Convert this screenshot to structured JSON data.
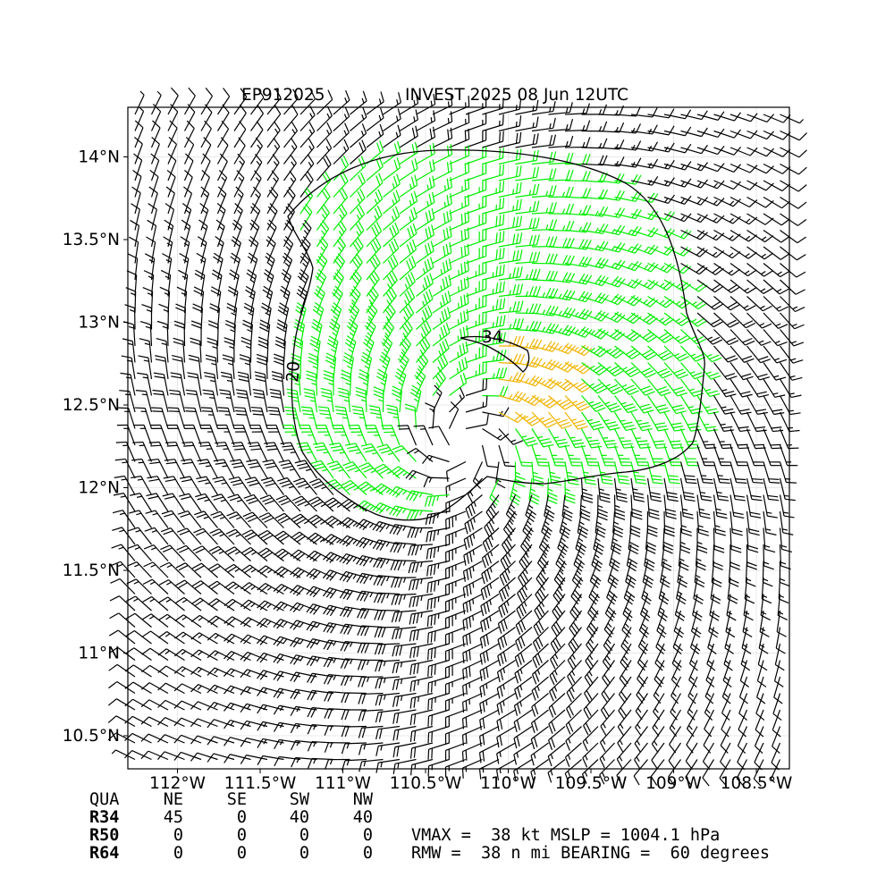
{
  "title": {
    "storm_id": "EP912025",
    "storm_desc": "INVEST 2025 08 Jun 12UTC"
  },
  "axes": {
    "x_ticks": [
      {
        "value": -112.0,
        "label": "112°W"
      },
      {
        "value": -111.5,
        "label": "111.5°W"
      },
      {
        "value": -111.0,
        "label": "111°W"
      },
      {
        "value": -110.5,
        "label": "110.5°W"
      },
      {
        "value": -110.0,
        "label": "110°W"
      },
      {
        "value": -109.5,
        "label": "109.5°W"
      },
      {
        "value": -109.0,
        "label": "109°W"
      },
      {
        "value": -108.5,
        "label": "108.5°W"
      }
    ],
    "y_ticks": [
      {
        "value": 14.0,
        "label": "14°N"
      },
      {
        "value": 13.5,
        "label": "13.5°N"
      },
      {
        "value": 13.0,
        "label": "13°N"
      },
      {
        "value": 12.5,
        "label": "12.5°N"
      },
      {
        "value": 12.0,
        "label": "12°N"
      },
      {
        "value": 11.5,
        "label": "11.5°N"
      },
      {
        "value": 11.0,
        "label": "11°N"
      },
      {
        "value": 10.5,
        "label": "10.5°N"
      }
    ],
    "lon_range": [
      -112.3,
      -108.3
    ],
    "lat_range": [
      10.3,
      14.3
    ],
    "grid": true
  },
  "wind_field": {
    "center": {
      "lon": -110.27,
      "lat": 12.27
    },
    "vmax_kt": 38,
    "rmw_nmi": 38,
    "colors": {
      "below_34": "#000000",
      "gale_34": "#00ee00",
      "over_34_peak": "#f0b400"
    }
  },
  "contours": [
    {
      "label": "20"
    },
    {
      "label": "34"
    }
  ],
  "table": {
    "header": [
      "QUA",
      "NE",
      "SE",
      "SW",
      "NW"
    ],
    "rows": [
      {
        "label": "R34",
        "values": [
          "45",
          "0",
          "40",
          "40"
        ]
      },
      {
        "label": "R50",
        "values": [
          "0",
          "0",
          "0",
          "0"
        ]
      },
      {
        "label": "R64",
        "values": [
          "0",
          "0",
          "0",
          "0"
        ]
      }
    ]
  },
  "info": {
    "line1": "VMAX =  38 kt MSLP = 1004.1 hPa",
    "line2": "RMW =  38 n mi BEARING =  60 degrees"
  }
}
